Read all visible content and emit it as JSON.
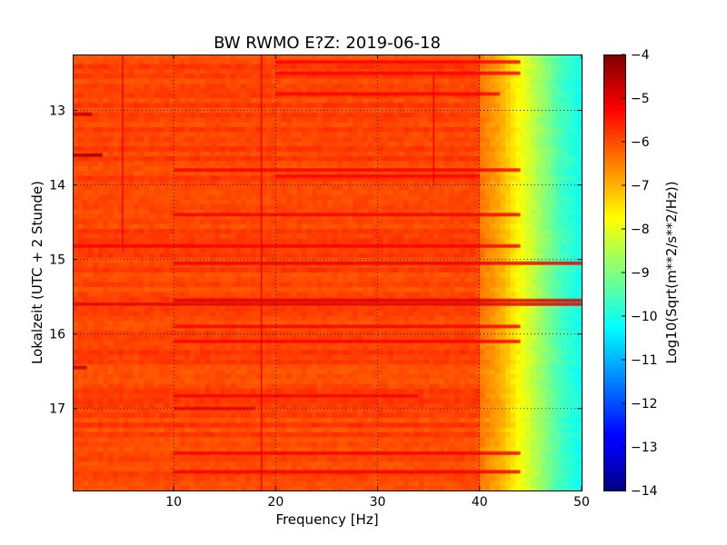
{
  "chart_data": {
    "type": "heatmap",
    "title": "BW RWMO E?Z: 2019-06-18",
    "xlabel": "Frequency [Hz]",
    "ylabel": "Lokalzeit (UTC + 2 Stunde)",
    "xlim": [
      0.1,
      50
    ],
    "ylim": [
      12.25,
      18.1
    ],
    "x_ticks": [
      10,
      20,
      30,
      40,
      50
    ],
    "y_ticks": [
      13,
      14,
      15,
      16,
      17
    ],
    "grid": true,
    "grid_style": "dotted",
    "colorbar": {
      "label": "Log10(Sqrt(m**2/s**2/Hz))",
      "range": [
        -14,
        -4
      ],
      "ticks": [
        -4,
        -5,
        -6,
        -7,
        -8,
        -9,
        -10,
        -11,
        -12,
        -13,
        -14
      ],
      "colormap": "jet"
    },
    "background_level": -5.9,
    "rolloff": [
      {
        "frequency": 40,
        "level": -6.4
      },
      {
        "frequency": 42,
        "level": -6.9
      },
      {
        "frequency": 44,
        "level": -7.8
      },
      {
        "frequency": 46,
        "level": -8.7
      },
      {
        "frequency": 48,
        "level": -9.6
      },
      {
        "frequency": 50,
        "level": -10.1
      }
    ],
    "bands": [
      {
        "time": 12.35,
        "freq_from": 20,
        "freq_to": 44,
        "level": -5.3
      },
      {
        "time": 12.5,
        "freq_from": 20,
        "freq_to": 44,
        "level": -5.3
      },
      {
        "time": 12.78,
        "freq_from": 20,
        "freq_to": 42,
        "level": -5.3
      },
      {
        "time": 13.05,
        "freq_from": 0.1,
        "freq_to": 2,
        "level": -4.6
      },
      {
        "time": 13.6,
        "freq_from": 0.1,
        "freq_to": 3,
        "level": -4.3
      },
      {
        "time": 13.8,
        "freq_from": 10,
        "freq_to": 44,
        "level": -5.2
      },
      {
        "time": 13.88,
        "freq_from": 20,
        "freq_to": 40,
        "level": -5.3
      },
      {
        "time": 14.4,
        "freq_from": 10,
        "freq_to": 44,
        "level": -5.2
      },
      {
        "time": 14.82,
        "freq_from": 0.1,
        "freq_to": 44,
        "level": -5.2
      },
      {
        "time": 15.05,
        "freq_from": 10,
        "freq_to": 50,
        "level": -5.1
      },
      {
        "time": 15.55,
        "freq_from": 10,
        "freq_to": 50,
        "level": -4.9
      },
      {
        "time": 15.6,
        "freq_from": 0.1,
        "freq_to": 50,
        "level": -5.0
      },
      {
        "time": 15.9,
        "freq_from": 10,
        "freq_to": 44,
        "level": -5.3
      },
      {
        "time": 16.1,
        "freq_from": 10,
        "freq_to": 44,
        "level": -5.3
      },
      {
        "time": 16.45,
        "freq_from": 0.1,
        "freq_to": 1.5,
        "level": -4.6
      },
      {
        "time": 16.83,
        "freq_from": 10,
        "freq_to": 34,
        "level": -5.2
      },
      {
        "time": 17.0,
        "freq_from": 10,
        "freq_to": 18,
        "level": -5.1
      },
      {
        "time": 17.6,
        "freq_from": 10,
        "freq_to": 44,
        "level": -5.2
      },
      {
        "time": 17.85,
        "freq_from": 10,
        "freq_to": 44,
        "level": -5.2
      }
    ],
    "lines": [
      {
        "frequency": 5,
        "time_from": 12.25,
        "time_to": 14.9,
        "level": -5.2
      },
      {
        "frequency": 18.6,
        "time_from": 12.25,
        "time_to": 18.1,
        "level": -5.0
      },
      {
        "frequency": 35.5,
        "time_from": 12.5,
        "time_to": 14.0,
        "level": -5.1
      }
    ]
  }
}
